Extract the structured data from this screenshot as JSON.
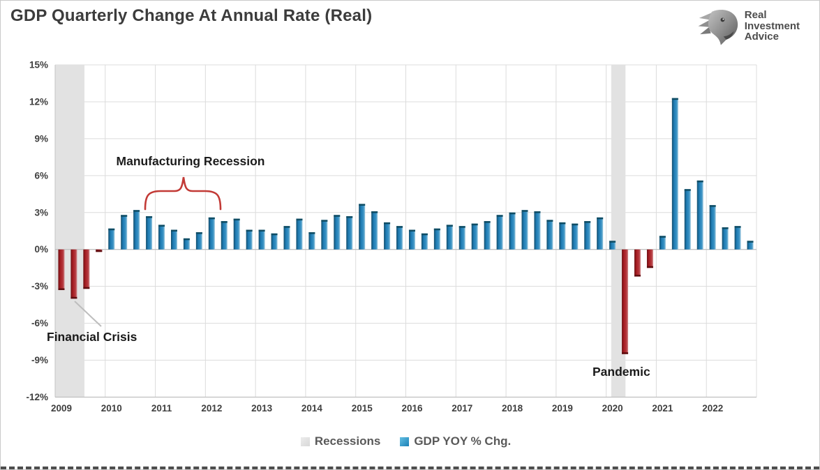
{
  "header": {
    "title": "GDP Quarterly Change At Annual Rate (Real)"
  },
  "logo": {
    "line1": "Real",
    "line2": "Investment",
    "line3": "Advice"
  },
  "chart_data": {
    "type": "bar",
    "title": "GDP Quarterly Change At Annual Rate (Real)",
    "xlabel": "",
    "ylabel": "GDP YoY % change",
    "ylim": [
      -12,
      15
    ],
    "y_tick_step": 3,
    "y_tick_labels": [
      "15%",
      "12%",
      "9%",
      "6%",
      "3%",
      "0%",
      "-3%",
      "-6%",
      "-9%",
      "-12%"
    ],
    "x_tick_labels": [
      "2009",
      "2010",
      "2011",
      "2012",
      "2013",
      "2014",
      "2015",
      "2016",
      "2017",
      "2018",
      "2019",
      "2020",
      "2021",
      "2022"
    ],
    "start_year": 2009,
    "quarters_per_year": 4,
    "grid": "on",
    "legend_position": "bottom",
    "series": [
      {
        "name": "GDP YOY % Chg.",
        "unit": "%",
        "values": [
          -3.3,
          -4.0,
          -3.2,
          -0.2,
          1.7,
          2.8,
          3.2,
          2.7,
          2.0,
          1.6,
          0.9,
          1.4,
          2.6,
          2.3,
          2.5,
          1.6,
          1.6,
          1.3,
          1.9,
          2.5,
          1.4,
          2.4,
          2.8,
          2.7,
          3.7,
          3.1,
          2.2,
          1.9,
          1.6,
          1.3,
          1.7,
          2.0,
          1.9,
          2.1,
          2.3,
          2.8,
          3.0,
          3.2,
          3.1,
          2.4,
          2.2,
          2.1,
          2.3,
          2.6,
          0.7,
          -8.5,
          -2.2,
          -1.5,
          1.1,
          12.3,
          4.9,
          5.6,
          3.6,
          1.8,
          1.9,
          0.7
        ]
      }
    ],
    "recession_bands": [
      {
        "from_year": 2009.0,
        "to_year": 2009.585
      },
      {
        "from_year": 2020.1,
        "to_year": 2020.385
      }
    ],
    "annotations": [
      {
        "id": "manufacturing-recession",
        "text": "Manufacturing Recession"
      },
      {
        "id": "financial-crisis",
        "text": "Financial Crisis"
      },
      {
        "id": "pandemic",
        "text": "Pandemic"
      }
    ],
    "legend": [
      {
        "label": "Recessions",
        "color": "#e2e2e2"
      },
      {
        "label": "GDP YOY % Chg.",
        "color": "#1f7cb4"
      }
    ],
    "colors": {
      "positive_bar": "#1f7cb4",
      "negative_bar": "#a81e24",
      "recession_band": "#e2e2e2",
      "annotation_brace": "#c23a36",
      "gridline": "#dcdcdc",
      "axis_text": "#3f3f3f"
    }
  }
}
